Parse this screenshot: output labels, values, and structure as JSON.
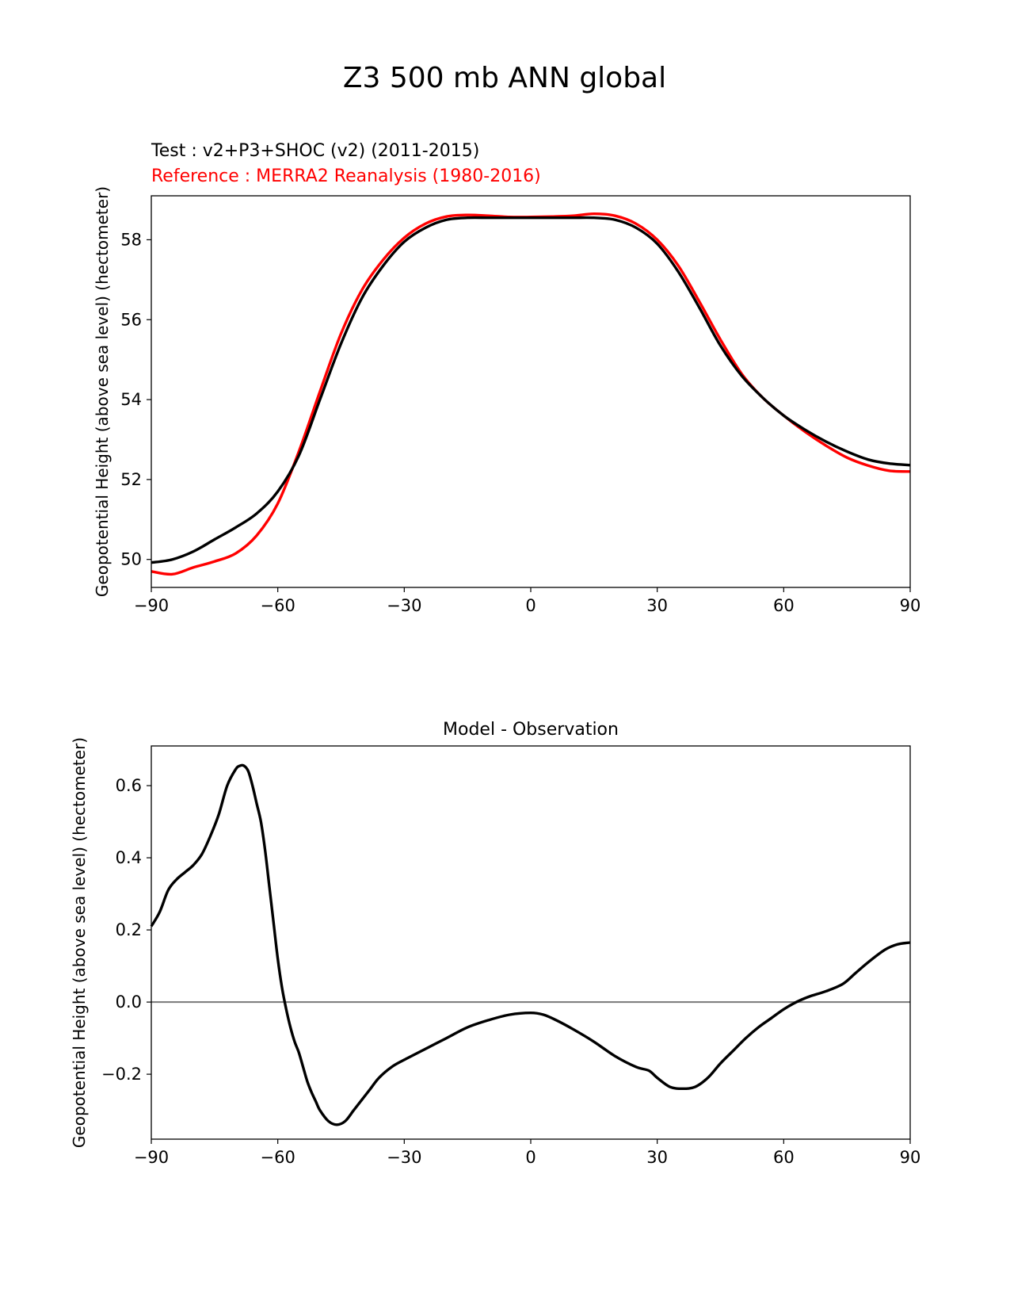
{
  "figure_title": "Z3 500 mb ANN global",
  "chart_data": [
    {
      "type": "line",
      "test_label": "Test : v2+P3+SHOC (v2) (2011-2015)",
      "reference_label": "Reference : MERRA2 Reanalysis (1980-2016)",
      "xlabel": "",
      "ylabel": "Geopotential Height (above sea level) (hectometer)",
      "xlim": [
        -90,
        90
      ],
      "ylim": [
        49.3,
        59.1
      ],
      "xticks": [
        -90,
        -60,
        -30,
        0,
        30,
        60,
        90
      ],
      "xtick_labels": [
        "−90",
        "−60",
        "−30",
        "0",
        "30",
        "60",
        "90"
      ],
      "yticks": [
        50,
        52,
        54,
        56,
        58
      ],
      "ytick_labels": [
        "50",
        "52",
        "54",
        "56",
        "58"
      ],
      "series": [
        {
          "name": "Test",
          "color": "#000000",
          "points": [
            [
              -90,
              49.92
            ],
            [
              -85,
              50.0
            ],
            [
              -80,
              50.2
            ],
            [
              -75,
              50.5
            ],
            [
              -70,
              50.8
            ],
            [
              -65,
              51.15
            ],
            [
              -60,
              51.7
            ],
            [
              -55,
              52.6
            ],
            [
              -50,
              54.0
            ],
            [
              -45,
              55.4
            ],
            [
              -40,
              56.55
            ],
            [
              -35,
              57.35
            ],
            [
              -30,
              57.95
            ],
            [
              -25,
              58.3
            ],
            [
              -20,
              58.5
            ],
            [
              -15,
              58.55
            ],
            [
              -10,
              58.55
            ],
            [
              -5,
              58.55
            ],
            [
              0,
              58.55
            ],
            [
              5,
              58.55
            ],
            [
              10,
              58.55
            ],
            [
              15,
              58.55
            ],
            [
              20,
              58.5
            ],
            [
              25,
              58.3
            ],
            [
              30,
              57.9
            ],
            [
              35,
              57.2
            ],
            [
              40,
              56.3
            ],
            [
              45,
              55.35
            ],
            [
              50,
              54.6
            ],
            [
              55,
              54.05
            ],
            [
              60,
              53.6
            ],
            [
              65,
              53.25
            ],
            [
              70,
              52.95
            ],
            [
              75,
              52.7
            ],
            [
              80,
              52.5
            ],
            [
              85,
              52.4
            ],
            [
              90,
              52.36
            ]
          ]
        },
        {
          "name": "Reference",
          "color": "#ff0000",
          "points": [
            [
              -90,
              49.7
            ],
            [
              -85,
              49.63
            ],
            [
              -80,
              49.8
            ],
            [
              -75,
              49.95
            ],
            [
              -70,
              50.15
            ],
            [
              -65,
              50.6
            ],
            [
              -60,
              51.4
            ],
            [
              -55,
              52.7
            ],
            [
              -50,
              54.2
            ],
            [
              -45,
              55.65
            ],
            [
              -40,
              56.75
            ],
            [
              -35,
              57.5
            ],
            [
              -30,
              58.05
            ],
            [
              -25,
              58.4
            ],
            [
              -20,
              58.58
            ],
            [
              -15,
              58.62
            ],
            [
              -10,
              58.6
            ],
            [
              -5,
              58.57
            ],
            [
              0,
              58.57
            ],
            [
              5,
              58.58
            ],
            [
              10,
              58.6
            ],
            [
              15,
              58.65
            ],
            [
              20,
              58.6
            ],
            [
              25,
              58.4
            ],
            [
              30,
              58.0
            ],
            [
              35,
              57.35
            ],
            [
              40,
              56.45
            ],
            [
              45,
              55.5
            ],
            [
              50,
              54.65
            ],
            [
              55,
              54.05
            ],
            [
              60,
              53.6
            ],
            [
              65,
              53.2
            ],
            [
              70,
              52.85
            ],
            [
              75,
              52.55
            ],
            [
              80,
              52.35
            ],
            [
              85,
              52.22
            ],
            [
              90,
              52.2
            ]
          ]
        }
      ]
    },
    {
      "type": "line",
      "title": "Model - Observation",
      "xlabel": "",
      "ylabel": "Geopotential Height (above sea level) (hectometer)",
      "xlim": [
        -90,
        90
      ],
      "ylim": [
        -0.38,
        0.71
      ],
      "xticks": [
        -90,
        -60,
        -30,
        0,
        30,
        60,
        90
      ],
      "xtick_labels": [
        "−90",
        "−60",
        "−30",
        "0",
        "30",
        "60",
        "90"
      ],
      "yticks": [
        -0.2,
        0.0,
        0.2,
        0.4,
        0.6
      ],
      "ytick_labels": [
        "−0.2",
        "0.0",
        "0.2",
        "0.4",
        "0.6"
      ],
      "zero_line": {
        "y": 0,
        "color": "#808080"
      },
      "series": [
        {
          "name": "Model - Observation",
          "color": "#000000",
          "points": [
            [
              -90,
              0.21
            ],
            [
              -88,
              0.25
            ],
            [
              -86,
              0.31
            ],
            [
              -84,
              0.34
            ],
            [
              -82,
              0.36
            ],
            [
              -80,
              0.38
            ],
            [
              -78,
              0.41
            ],
            [
              -76,
              0.46
            ],
            [
              -74,
              0.52
            ],
            [
              -72,
              0.6
            ],
            [
              -70,
              0.645
            ],
            [
              -69,
              0.655
            ],
            [
              -68,
              0.655
            ],
            [
              -67,
              0.64
            ],
            [
              -66,
              0.6
            ],
            [
              -65,
              0.55
            ],
            [
              -64,
              0.5
            ],
            [
              -63,
              0.42
            ],
            [
              -62,
              0.32
            ],
            [
              -61,
              0.22
            ],
            [
              -60,
              0.12
            ],
            [
              -59,
              0.04
            ],
            [
              -58,
              -0.02
            ],
            [
              -57,
              -0.07
            ],
            [
              -56,
              -0.11
            ],
            [
              -55,
              -0.14
            ],
            [
              -54,
              -0.18
            ],
            [
              -53,
              -0.22
            ],
            [
              -52,
              -0.25
            ],
            [
              -51,
              -0.275
            ],
            [
              -50,
              -0.3
            ],
            [
              -48,
              -0.33
            ],
            [
              -46,
              -0.34
            ],
            [
              -44,
              -0.33
            ],
            [
              -42,
              -0.3
            ],
            [
              -40,
              -0.27
            ],
            [
              -38,
              -0.24
            ],
            [
              -36,
              -0.21
            ],
            [
              -33,
              -0.18
            ],
            [
              -30,
              -0.16
            ],
            [
              -25,
              -0.13
            ],
            [
              -20,
              -0.1
            ],
            [
              -15,
              -0.07
            ],
            [
              -10,
              -0.05
            ],
            [
              -5,
              -0.035
            ],
            [
              0,
              -0.03
            ],
            [
              3,
              -0.035
            ],
            [
              6,
              -0.05
            ],
            [
              10,
              -0.075
            ],
            [
              15,
              -0.11
            ],
            [
              20,
              -0.15
            ],
            [
              25,
              -0.18
            ],
            [
              28,
              -0.19
            ],
            [
              30,
              -0.21
            ],
            [
              33,
              -0.235
            ],
            [
              36,
              -0.24
            ],
            [
              39,
              -0.235
            ],
            [
              42,
              -0.21
            ],
            [
              45,
              -0.17
            ],
            [
              48,
              -0.135
            ],
            [
              51,
              -0.1
            ],
            [
              54,
              -0.07
            ],
            [
              57,
              -0.045
            ],
            [
              60,
              -0.02
            ],
            [
              63,
              0.0
            ],
            [
              66,
              0.015
            ],
            [
              70,
              0.03
            ],
            [
              74,
              0.05
            ],
            [
              77,
              0.08
            ],
            [
              80,
              0.11
            ],
            [
              84,
              0.145
            ],
            [
              87,
              0.16
            ],
            [
              90,
              0.165
            ]
          ]
        }
      ]
    }
  ]
}
